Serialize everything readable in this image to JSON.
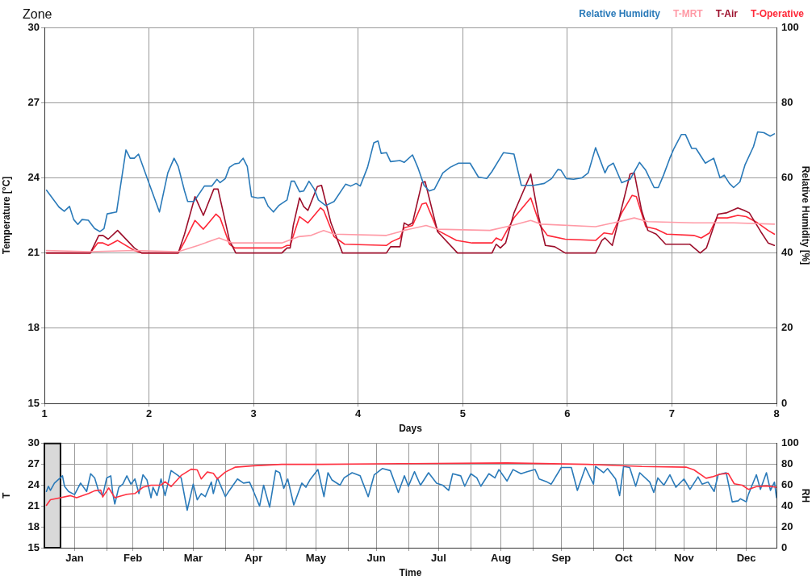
{
  "chart_data": [
    {
      "type": "line",
      "title": "Zone",
      "xlabel": "Days",
      "ylabel": "Temperature [°C]",
      "y2label": "Relative Humidity [%]",
      "xlim": [
        1,
        8
      ],
      "xticks": [
        1,
        2,
        3,
        4,
        5,
        6,
        7,
        8
      ],
      "ylim": [
        15,
        30
      ],
      "yticks": [
        15,
        18,
        21,
        24,
        27,
        30
      ],
      "y2lim": [
        0,
        100
      ],
      "y2ticks": [
        0,
        20,
        40,
        60,
        80,
        100
      ],
      "grid": true,
      "legend": "top right",
      "series": [
        {
          "name": "Relative Humidity",
          "color": "#2a7ab9",
          "axis": "y2",
          "x": [
            1.02,
            1.14,
            1.19,
            1.24,
            1.28,
            1.32,
            1.36,
            1.42,
            1.48,
            1.53,
            1.57,
            1.6,
            1.69,
            1.78,
            1.82,
            1.86,
            1.9,
            1.97,
            2.1,
            2.18,
            2.24,
            2.28,
            2.34,
            2.37,
            2.43,
            2.53,
            2.6,
            2.65,
            2.68,
            2.73,
            2.77,
            2.82,
            2.86,
            2.9,
            2.94,
            2.98,
            3.04,
            3.1,
            3.14,
            3.19,
            3.24,
            3.32,
            3.36,
            3.39,
            3.44,
            3.48,
            3.53,
            3.58,
            3.62,
            3.69,
            3.77,
            3.88,
            3.93,
            3.98,
            4.02,
            4.09,
            4.15,
            4.19,
            4.22,
            4.27,
            4.31,
            4.4,
            4.44,
            4.52,
            4.57,
            4.63,
            4.68,
            4.73,
            4.81,
            4.88,
            4.96,
            5.07,
            5.15,
            5.23,
            5.28,
            5.39,
            5.49,
            5.56,
            5.68,
            5.78,
            5.85,
            5.91,
            5.94,
            5.99,
            6.06,
            6.14,
            6.2,
            6.27,
            6.36,
            6.39,
            6.44,
            6.52,
            6.6,
            6.69,
            6.75,
            6.83,
            6.87,
            6.92,
            6.98,
            7.02,
            7.09,
            7.13,
            7.19,
            7.23,
            7.32,
            7.4,
            7.46,
            7.5,
            7.55,
            7.59,
            7.65,
            7.7,
            7.78,
            7.82,
            7.88,
            7.94,
            7.98
          ],
          "values": [
            56.7,
            52.2,
            51.1,
            52.4,
            48.9,
            47.6,
            48.9,
            48.7,
            46.5,
            45.7,
            46.5,
            50.4,
            50.9,
            67.4,
            65.2,
            65.2,
            66.3,
            60.9,
            50.9,
            61.3,
            65.2,
            63.0,
            56.5,
            53.7,
            53.7,
            57.8,
            57.8,
            59.6,
            58.7,
            59.8,
            62.8,
            63.7,
            63.9,
            65.2,
            63.0,
            55.0,
            54.6,
            54.8,
            52.4,
            50.9,
            52.6,
            54.1,
            59.1,
            59.1,
            56.3,
            56.5,
            59.1,
            57.0,
            54.1,
            52.6,
            53.7,
            58.3,
            57.8,
            58.5,
            57.8,
            62.8,
            69.3,
            69.8,
            66.5,
            66.7,
            64.3,
            64.6,
            64.1,
            66.1,
            62.8,
            58.0,
            56.5,
            57.0,
            61.3,
            62.8,
            63.9,
            63.9,
            60.2,
            59.8,
            61.7,
            66.7,
            66.3,
            58.0,
            58.0,
            58.5,
            59.8,
            62.2,
            62.0,
            59.8,
            59.6,
            60.0,
            61.3,
            68.0,
            61.3,
            63.0,
            63.9,
            58.7,
            59.6,
            64.1,
            62.0,
            57.4,
            57.4,
            60.7,
            65.2,
            67.8,
            71.5,
            71.5,
            67.8,
            67.8,
            63.9,
            65.2,
            60.0,
            60.7,
            58.5,
            57.4,
            58.9,
            63.5,
            68.3,
            72.2,
            72.0,
            71.1,
            71.7
          ]
        },
        {
          "name": "T-MRT",
          "color": "#ff9aa6",
          "x": [
            1.02,
            1.44,
            1.86,
            2.28,
            2.47,
            2.67,
            2.8,
            3.27,
            3.43,
            3.55,
            3.67,
            3.77,
            4.27,
            4.4,
            4.44,
            4.65,
            4.76,
            5.26,
            5.47,
            5.65,
            5.75,
            6.27,
            6.44,
            6.64,
            6.77,
            7.21,
            7.59,
            7.98
          ],
          "values": [
            21.1,
            21.05,
            21.1,
            21.05,
            21.3,
            21.6,
            21.4,
            21.4,
            21.65,
            21.7,
            21.9,
            21.75,
            21.7,
            21.85,
            21.9,
            22.1,
            21.95,
            21.9,
            22.1,
            22.3,
            22.15,
            22.05,
            22.2,
            22.4,
            22.25,
            22.2,
            22.2,
            22.15
          ]
        },
        {
          "name": "T-Air",
          "color": "#9c0f2b",
          "x": [
            1.02,
            1.44,
            1.52,
            1.56,
            1.61,
            1.7,
            1.86,
            1.93,
            2.28,
            2.34,
            2.44,
            2.52,
            2.62,
            2.66,
            2.77,
            2.83,
            3.27,
            3.32,
            3.35,
            3.38,
            3.44,
            3.48,
            3.52,
            3.61,
            3.65,
            3.74,
            3.85,
            4.27,
            4.31,
            4.4,
            4.44,
            4.48,
            4.52,
            4.61,
            4.64,
            4.76,
            4.95,
            5.01,
            5.09,
            5.28,
            5.32,
            5.36,
            5.41,
            5.49,
            5.65,
            5.72,
            5.79,
            5.88,
            5.98,
            6.08,
            6.27,
            6.33,
            6.36,
            6.43,
            6.52,
            6.6,
            6.64,
            6.71,
            6.77,
            6.85,
            6.94,
            7.17,
            7.27,
            7.33,
            7.44,
            7.52,
            7.63,
            7.69,
            7.74,
            7.85,
            7.92,
            7.98
          ],
          "values": [
            21.0,
            21.0,
            21.7,
            21.7,
            21.55,
            21.9,
            21.2,
            21.0,
            21.0,
            21.75,
            23.25,
            22.5,
            23.55,
            23.55,
            21.5,
            21.0,
            21.0,
            21.2,
            21.2,
            22.1,
            23.2,
            22.85,
            22.7,
            23.65,
            23.7,
            22.2,
            21.0,
            21.0,
            21.25,
            21.25,
            22.2,
            22.1,
            22.2,
            23.8,
            23.85,
            21.85,
            21.0,
            21.0,
            21.0,
            21.0,
            21.35,
            21.2,
            21.4,
            22.6,
            24.15,
            22.55,
            21.3,
            21.25,
            21.0,
            21.0,
            21.0,
            21.5,
            21.6,
            21.3,
            22.8,
            24.15,
            24.2,
            22.7,
            21.9,
            21.75,
            21.35,
            21.35,
            21.0,
            21.2,
            22.55,
            22.6,
            22.8,
            22.7,
            22.6,
            21.85,
            21.4,
            21.3
          ]
        },
        {
          "name": "T-Operative",
          "color": "#ff2838",
          "x": [
            1.02,
            1.44,
            1.51,
            1.56,
            1.61,
            1.7,
            1.86,
            1.93,
            2.28,
            2.34,
            2.44,
            2.52,
            2.64,
            2.68,
            2.77,
            2.82,
            3.27,
            3.32,
            3.35,
            3.44,
            3.52,
            3.64,
            3.67,
            3.77,
            3.87,
            4.27,
            4.32,
            4.4,
            4.44,
            4.52,
            4.61,
            4.65,
            4.76,
            4.94,
            5.09,
            5.28,
            5.32,
            5.37,
            5.49,
            5.65,
            5.74,
            5.81,
            5.98,
            6.27,
            6.35,
            6.43,
            6.52,
            6.62,
            6.66,
            6.75,
            6.85,
            6.95,
            7.21,
            7.28,
            7.36,
            7.43,
            7.53,
            7.63,
            7.71,
            7.82,
            7.92,
            7.98
          ],
          "values": [
            21.0,
            21.0,
            21.4,
            21.4,
            21.3,
            21.5,
            21.1,
            21.0,
            21.0,
            21.45,
            22.3,
            21.95,
            22.55,
            22.4,
            21.35,
            21.2,
            21.2,
            21.3,
            21.3,
            22.45,
            22.2,
            22.8,
            22.7,
            21.65,
            21.35,
            21.3,
            21.45,
            21.6,
            22.0,
            22.1,
            22.95,
            23.0,
            21.9,
            21.5,
            21.4,
            21.4,
            21.6,
            21.5,
            22.4,
            23.2,
            22.1,
            21.7,
            21.55,
            21.5,
            21.8,
            21.75,
            22.6,
            23.3,
            23.25,
            22.05,
            21.95,
            21.75,
            21.7,
            21.6,
            21.8,
            22.4,
            22.4,
            22.5,
            22.45,
            22.2,
            21.9,
            21.75
          ]
        }
      ]
    },
    {
      "type": "line",
      "xlabel": "Time",
      "ylabel": "T",
      "y2label": "RH",
      "xlim": [
        "--01-01",
        "--12-31"
      ],
      "xticks": [
        {
          "value": "--01-16",
          "label": "Jan"
        },
        {
          "value": "--02-01",
          "label": null
        },
        {
          "value": "--02-14",
          "label": "Feb"
        },
        {
          "value": "--03-01",
          "label": null
        },
        {
          "value": "--03-16",
          "label": "Mar"
        },
        {
          "value": "--04-01",
          "label": null
        },
        {
          "value": "--04-15",
          "label": "Apr"
        },
        {
          "value": "--05-01",
          "label": null
        },
        {
          "value": "--05-16",
          "label": "May"
        },
        {
          "value": "--06-01",
          "label": null
        },
        {
          "value": "--06-15",
          "label": "Jun"
        },
        {
          "value": "--07-01",
          "label": null
        },
        {
          "value": "--07-16",
          "label": "Jul"
        },
        {
          "value": "--08-01",
          "label": null
        },
        {
          "value": "--08-16",
          "label": "Aug"
        },
        {
          "value": "--09-01",
          "label": null
        },
        {
          "value": "--09-15",
          "label": "Sep"
        },
        {
          "value": "--10-01",
          "label": null
        },
        {
          "value": "--10-16",
          "label": "Oct"
        },
        {
          "value": "--11-01",
          "label": null
        },
        {
          "value": "--11-15",
          "label": "Nov"
        },
        {
          "value": "--12-01",
          "label": null
        },
        {
          "value": "--12-16",
          "label": "Dec"
        }
      ],
      "ylim": [
        15,
        30
      ],
      "yticks": [
        15,
        18,
        21,
        24,
        27,
        30
      ],
      "y2lim": [
        0,
        100
      ],
      "y2ticks": [
        0,
        20,
        40,
        60,
        80,
        100
      ],
      "grid": true,
      "bands": [
        {
          "axis": "x",
          "from": "--01-01",
          "to": "--01-09",
          "color": "#d9d9d9"
        }
      ],
      "series": [
        {
          "color": "#ff3040",
          "x": [
            "--01-02",
            "--01-04",
            "--01-09",
            "--01-14",
            "--01-17",
            "--01-23",
            "--01-26",
            "--01-29",
            "--01-30",
            "--02-02",
            "--02-05",
            "--02-11",
            "--02-15",
            "--02-19",
            "--02-23",
            "--02-28",
            "--03-02",
            "--03-05",
            "--03-10",
            "--03-15",
            "--03-18",
            "--03-20",
            "--03-23",
            "--03-26",
            "--03-28",
            "--04-01",
            "--04-06",
            "--04-15",
            "--04-29",
            "--05-19",
            "--06-27",
            "--08-19",
            "--09-28",
            "--10-25",
            "--11-16",
            "--11-20",
            "--11-26",
            "--11-29",
            "--12-03",
            "--12-07",
            "--12-10",
            "--12-14",
            "--12-17",
            "--12-21",
            "--12-26",
            "--12-31"
          ],
          "values": [
            21.1,
            21.9,
            22.2,
            22.5,
            22.2,
            22.8,
            23.2,
            23.3,
            22.3,
            23.6,
            22.2,
            22.7,
            22.8,
            23.7,
            24.0,
            24.0,
            24.5,
            23.8,
            25.4,
            26.3,
            26.2,
            24.9,
            25.9,
            25.7,
            24.9,
            25.9,
            26.6,
            26.8,
            27.0,
            27.0,
            27.1,
            27.2,
            27.0,
            26.7,
            26.6,
            26.2,
            25.0,
            25.2,
            25.6,
            25.7,
            24.2,
            24.0,
            23.4,
            23.8,
            23.9,
            23.7
          ]
        },
        {
          "color": "#2a7ab9",
          "axis": "y2",
          "x": [
            "--01-02",
            "--01-03",
            "--01-04",
            "--01-06",
            "--01-10",
            "--01-11",
            "--01-13",
            "--01-16",
            "--01-19",
            "--01-22",
            "--01-24",
            "--01-26",
            "--01-28",
            "--01-30",
            "--02-01",
            "--02-03",
            "--02-04",
            "--02-05",
            "--02-07",
            "--02-09",
            "--02-11",
            "--02-13",
            "--02-15",
            "--02-17",
            "--02-19",
            "--02-21",
            "--02-23",
            "--02-24",
            "--02-26",
            "--02-28",
            "--03-02",
            "--03-05",
            "--03-08",
            "--03-10",
            "--03-13",
            "--03-16",
            "--03-18",
            "--03-20",
            "--03-22",
            "--03-25",
            "--03-26",
            "--03-28",
            "--04-01",
            "--04-03",
            "--04-07",
            "--04-10",
            "--04-13",
            "--04-15",
            "--04-18",
            "--04-20",
            "--04-23",
            "--04-26",
            "--04-28",
            "--04-30",
            "--05-02",
            "--05-05",
            "--05-09",
            "--05-11",
            "--05-13",
            "--05-17",
            "--05-20",
            "--05-22",
            "--05-24",
            "--05-28",
            "--05-30",
            "--06-03",
            "--06-07",
            "--06-11",
            "--06-14",
            "--06-18",
            "--06-22",
            "--06-26",
            "--06-29",
            "--07-01",
            "--07-04",
            "--07-07",
            "--07-11",
            "--07-15",
            "--07-18",
            "--07-21",
            "--07-23",
            "--07-27",
            "--07-29",
            "--08-01",
            "--08-04",
            "--08-06",
            "--08-10",
            "--08-13",
            "--08-15",
            "--08-19",
            "--08-22",
            "--08-26",
            "--08-29",
            "--09-02",
            "--09-04",
            "--09-08",
            "--09-10",
            "--09-15",
            "--09-20",
            "--09-23",
            "--09-27",
            "--10-01",
            "--10-02",
            "--10-06",
            "--10-08",
            "--10-12",
            "--10-14",
            "--10-16",
            "--10-19",
            "--10-22",
            "--10-24",
            "--10-29",
            "--10-31",
            "--11-02",
            "--11-05",
            "--11-08",
            "--11-11",
            "--11-15",
            "--11-18",
            "--11-22",
            "--11-24",
            "--11-27",
            "--11-30",
            "--12-02",
            "--12-06",
            "--12-09",
            "--12-12",
            "--12-13",
            "--12-16",
            "--12-17",
            "--12-21",
            "--12-23",
            "--12-26",
            "--12-28",
            "--12-30",
            "--12-31"
          ],
          "values": [
            54,
            59,
            55,
            62,
            69,
            59,
            54,
            51,
            62,
            54,
            71,
            67,
            54,
            50,
            67,
            69,
            52,
            42,
            58,
            61,
            69,
            61,
            66,
            52,
            70,
            65,
            48,
            58,
            50,
            66,
            50,
            74,
            70,
            67,
            36,
            61,
            46,
            52,
            49,
            63,
            52,
            67,
            49,
            55,
            66,
            62,
            63,
            54,
            40,
            60,
            39,
            74,
            72,
            57,
            66,
            41,
            62,
            58,
            65,
            75,
            49,
            72,
            65,
            60,
            67,
            72,
            69,
            49,
            70,
            76,
            74,
            53,
            69,
            59,
            73,
            60,
            72,
            62,
            60,
            55,
            71,
            69,
            59,
            71,
            67,
            59,
            71,
            67,
            75,
            64,
            75,
            71,
            73,
            75,
            66,
            63,
            61,
            77,
            77,
            55,
            77,
            61,
            78,
            72,
            76,
            66,
            50,
            78,
            77,
            59,
            72,
            63,
            53,
            67,
            60,
            70,
            58,
            66,
            56,
            68,
            61,
            63,
            54,
            70,
            72,
            44,
            45,
            47,
            44,
            51,
            70,
            56,
            72,
            55,
            63,
            48
          ]
        }
      ]
    }
  ]
}
